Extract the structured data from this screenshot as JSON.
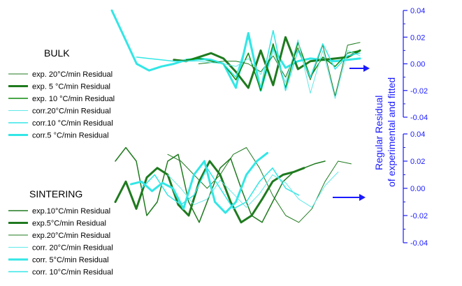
{
  "colors": {
    "dark_green": "#1f7a1f",
    "green": "#0f8a0f",
    "cyan": "#33e6e6",
    "light_cyan": "#5fe8e8",
    "axis_blue": "#1a1aff"
  },
  "chart_data": [
    {
      "type": "line",
      "panel": "top",
      "group_label": "BULK",
      "y_axis_ticks": [
        "0.04",
        "0.02",
        "0.00",
        "-0.02",
        "-0.04"
      ],
      "ylim": [
        -0.04,
        0.04
      ],
      "legend": [
        {
          "label": "exp. 20°C/min Residual",
          "color": "#1f7a1f",
          "width": 1
        },
        {
          "label": "exp. 5 °C/min Residual",
          "color": "#1f7a1f",
          "width": 3
        },
        {
          "label": "exp. 10 °C/min Residual",
          "color": "#0f8a0f",
          "width": 1.5
        },
        {
          "label": "corr.20°C/min Residual",
          "color": "#5fe8e8",
          "width": 1
        },
        {
          "label": "corr.10 °C/min Residual",
          "color": "#33e6e6",
          "width": 1.5
        },
        {
          "label": "corr.5 °C/min Residual",
          "color": "#33e6e6",
          "width": 3
        }
      ],
      "series": [
        {
          "id": "bulk_corr5",
          "color": "#33e6e6",
          "width": 3,
          "x": [
            0,
            0.05,
            0.1,
            0.15,
            0.2,
            0.25,
            0.3,
            0.35,
            0.4,
            0.45,
            0.5,
            0.55,
            0.6,
            0.65,
            0.7,
            0.75,
            0.8,
            0.85,
            0.9,
            0.95,
            1
          ],
          "y": [
            0.04,
            0.02,
            0.0,
            -0.005,
            -0.002,
            0.0,
            0.003,
            0.004,
            0.003,
            0.0,
            -0.018,
            0.023,
            -0.02,
            0.012,
            -0.003,
            0.002,
            0.004,
            0.003,
            0.002,
            0.003,
            0.004
          ]
        },
        {
          "id": "bulk_exp5",
          "color": "#1f7a1f",
          "width": 3,
          "x": [
            0.25,
            0.3,
            0.35,
            0.4,
            0.45,
            0.5,
            0.55,
            0.6,
            0.65,
            0.7,
            0.75,
            0.8,
            0.85,
            0.9,
            0.95,
            1
          ],
          "y": [
            0.003,
            0.002,
            0.005,
            0.008,
            0.004,
            -0.006,
            -0.018,
            0.01,
            -0.016,
            0.02,
            -0.004,
            0.002,
            0.003,
            0.004,
            0.005,
            0.01
          ]
        },
        {
          "id": "bulk_exp10",
          "color": "#0f8a0f",
          "width": 1.5,
          "x": [
            0.3,
            0.35,
            0.4,
            0.45,
            0.5,
            0.55,
            0.6,
            0.65,
            0.7,
            0.75,
            0.8,
            0.85,
            0.9,
            0.95,
            1
          ],
          "y": [
            0.003,
            0.004,
            0.002,
            0.0,
            -0.012,
            0.008,
            -0.02,
            0.015,
            -0.018,
            0.016,
            -0.01,
            0.005,
            -0.002,
            0.008,
            0.01
          ]
        },
        {
          "id": "bulk_exp20",
          "color": "#1f7a1f",
          "width": 1,
          "x": [
            0.35,
            0.4,
            0.45,
            0.5,
            0.55,
            0.6,
            0.65,
            0.7,
            0.75,
            0.8,
            0.85,
            0.9,
            0.95,
            1
          ],
          "y": [
            0.0,
            0.001,
            0.002,
            0.002,
            0.0,
            -0.006,
            0.006,
            -0.01,
            0.012,
            -0.012,
            0.014,
            -0.024,
            0.014,
            0.016
          ]
        },
        {
          "id": "bulk_corr10",
          "color": "#33e6e6",
          "width": 1.5,
          "x": [
            0.1,
            0.15,
            0.2,
            0.25,
            0.3,
            0.35,
            0.4,
            0.45,
            0.5,
            0.55,
            0.6,
            0.65,
            0.7,
            0.75,
            0.8,
            0.85,
            0.9,
            0.95,
            1
          ],
          "y": [
            0.005,
            0.004,
            0.003,
            0.002,
            0.002,
            0.003,
            0.003,
            0.0,
            -0.01,
            0.02,
            -0.018,
            0.025,
            -0.02,
            0.01,
            -0.01,
            0.015,
            -0.004,
            0.006,
            0.008
          ]
        },
        {
          "id": "bulk_corr20",
          "color": "#5fe8e8",
          "width": 1,
          "x": [
            0.3,
            0.35,
            0.4,
            0.45,
            0.5,
            0.55,
            0.6,
            0.65,
            0.7,
            0.75,
            0.8,
            0.85,
            0.9,
            0.95,
            1
          ],
          "y": [
            0.002,
            0.002,
            0.001,
            0.0,
            -0.002,
            0.004,
            -0.008,
            0.01,
            -0.014,
            0.018,
            -0.022,
            0.01,
            -0.026,
            0.01,
            0.006
          ]
        }
      ]
    },
    {
      "type": "line",
      "panel": "bottom",
      "group_label": "SINTERING",
      "y_axis_ticks": [
        "0.04",
        "0.02",
        "0.00",
        "-0.02",
        "-0.04"
      ],
      "ylim": [
        -0.04,
        0.04
      ],
      "axis_title_line1": "Regular Residual",
      "axis_title_line2": "of experimental and fitted",
      "legend": [
        {
          "label": "exp.10°C/min Residual",
          "color": "#1f7a1f",
          "width": 1.5
        },
        {
          "label": "exp.5°C/min Residual",
          "color": "#1f7a1f",
          "width": 3
        },
        {
          "label": "exp.20°C/min Residual",
          "color": "#1f7a1f",
          "width": 1
        },
        {
          "label": "corr. 20°C/min Residual",
          "color": "#5fe8e8",
          "width": 1
        },
        {
          "label": "corr. 5°C/min Residual",
          "color": "#33e6e6",
          "width": 3
        },
        {
          "label": "corr. 10°C/min Residual",
          "color": "#33e6e6",
          "width": 1.5
        }
      ],
      "series": [
        {
          "id": "sint_exp10",
          "color": "#1f7a1f",
          "width": 1.5,
          "x": [
            0,
            0.04,
            0.08,
            0.12,
            0.16,
            0.2,
            0.24,
            0.28,
            0.32,
            0.36,
            0.4,
            0.44,
            0.48,
            0.52,
            0.56,
            0.6,
            0.64,
            0.68,
            0.72,
            0.76,
            0.8
          ],
          "y": [
            0.02,
            0.03,
            0.02,
            -0.02,
            -0.01,
            0.02,
            0.025,
            -0.01,
            -0.025,
            -0.005,
            0.015,
            0.022,
            0.0,
            -0.02,
            -0.025,
            -0.01,
            0.005,
            0.012,
            0.015,
            0.018,
            0.02
          ]
        },
        {
          "id": "sint_exp5",
          "color": "#1f7a1f",
          "width": 3,
          "x": [
            0.0,
            0.04,
            0.08,
            0.12,
            0.16,
            0.2,
            0.24,
            0.28,
            0.32,
            0.36,
            0.4,
            0.44,
            0.48,
            0.52,
            0.56,
            0.6,
            0.64,
            0.68,
            0.72
          ],
          "y": [
            -0.01,
            0.005,
            -0.015,
            0.008,
            0.015,
            0.01,
            -0.012,
            -0.02,
            0.005,
            0.02,
            0.01,
            -0.01,
            -0.025,
            -0.02,
            -0.008,
            0.005,
            0.01,
            0.012,
            0.015
          ]
        },
        {
          "id": "sint_exp20",
          "color": "#1f7a1f",
          "width": 1,
          "x": [
            0.2,
            0.25,
            0.3,
            0.35,
            0.4,
            0.45,
            0.5,
            0.55,
            0.6,
            0.65,
            0.7,
            0.75,
            0.8,
            0.85,
            0.9
          ],
          "y": [
            0.025,
            0.02,
            0.01,
            0.0,
            0.01,
            0.025,
            0.03,
            0.015,
            -0.005,
            -0.02,
            -0.025,
            -0.015,
            0.005,
            0.02,
            0.018
          ]
        },
        {
          "id": "sint_corr5",
          "color": "#33e6e6",
          "width": 3,
          "x": [
            0.06,
            0.1,
            0.14,
            0.18,
            0.22,
            0.26,
            0.3,
            0.34,
            0.38,
            0.42,
            0.46,
            0.5,
            0.54,
            0.58
          ],
          "y": [
            0.003,
            0.005,
            -0.002,
            0.004,
            0.0,
            -0.015,
            0.01,
            0.02,
            -0.01,
            -0.018,
            -0.01,
            0.01,
            0.02,
            0.026
          ]
        },
        {
          "id": "sint_corr10",
          "color": "#33e6e6",
          "width": 1.5,
          "x": [
            0.1,
            0.15,
            0.2,
            0.25,
            0.3,
            0.35,
            0.4,
            0.45,
            0.5,
            0.55,
            0.6,
            0.65,
            0.7
          ],
          "y": [
            0.0,
            0.01,
            -0.005,
            -0.012,
            -0.005,
            0.015,
            0.0,
            -0.015,
            -0.01,
            0.005,
            0.015,
            0.0,
            -0.005
          ]
        },
        {
          "id": "sint_corr20",
          "color": "#5fe8e8",
          "width": 1,
          "x": [
            0.2,
            0.25,
            0.3,
            0.35,
            0.4,
            0.45,
            0.5,
            0.55,
            0.6,
            0.65,
            0.7,
            0.75,
            0.8,
            0.85
          ],
          "y": [
            0.01,
            0.0,
            -0.012,
            -0.008,
            0.006,
            -0.004,
            -0.014,
            -0.004,
            0.01,
            0.004,
            -0.008,
            -0.014,
            0.002,
            0.012
          ]
        }
      ]
    }
  ]
}
